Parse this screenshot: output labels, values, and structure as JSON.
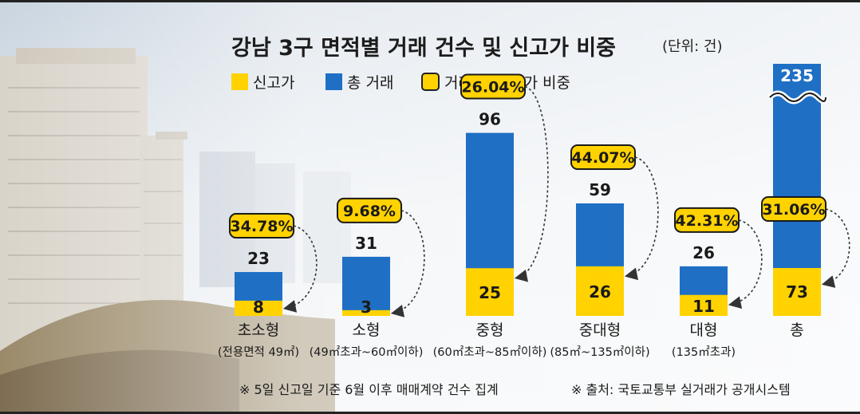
{
  "chart_data": {
    "type": "bar",
    "title": "강남 3구 면적별 거래 건수 및 신고가 비중",
    "unit": "(단위: 건)",
    "categories": [
      "초소형",
      "소형",
      "중형",
      "중대형",
      "대형",
      "총"
    ],
    "subcategories": [
      "(전용면적 49㎡)",
      "(49㎡초과~60㎡이하)",
      "(60㎡초과~85㎡이하)",
      "(85㎡~135㎡이하)",
      "(135㎡초과)",
      ""
    ],
    "series": [
      {
        "name": "신고가",
        "values": [
          8,
          3,
          25,
          26,
          11,
          73
        ],
        "color": "#ffd200"
      },
      {
        "name": "총 거래",
        "values": [
          23,
          31,
          96,
          59,
          26,
          235
        ],
        "color": "#1f6fc5"
      }
    ],
    "ratio_labels": [
      "34.78%",
      "9.68%",
      "26.04%",
      "44.07%",
      "42.31%",
      "31.06%"
    ],
    "legend": [
      {
        "label": "신고가",
        "color": "#ffd200",
        "shape": "square"
      },
      {
        "label": "총 거래",
        "color": "#1f6fc5",
        "shape": "square"
      },
      {
        "label": "거래 중 신고가 비중",
        "color": "#ffd200",
        "shape": "rounded-outline"
      }
    ],
    "ylim": [
      0,
      100
    ],
    "axis_break": "총 거래 bar of 총 is truncated",
    "grid": false
  },
  "footnotes": {
    "left": "※ 5일 신고일 기준 6월 이후 매매계약 건수 집계",
    "right": "※ 출처: 국토교통부 실거래가 공개시스템"
  },
  "colors": {
    "total": "#1f6fc5",
    "new_high": "#ffd200"
  }
}
